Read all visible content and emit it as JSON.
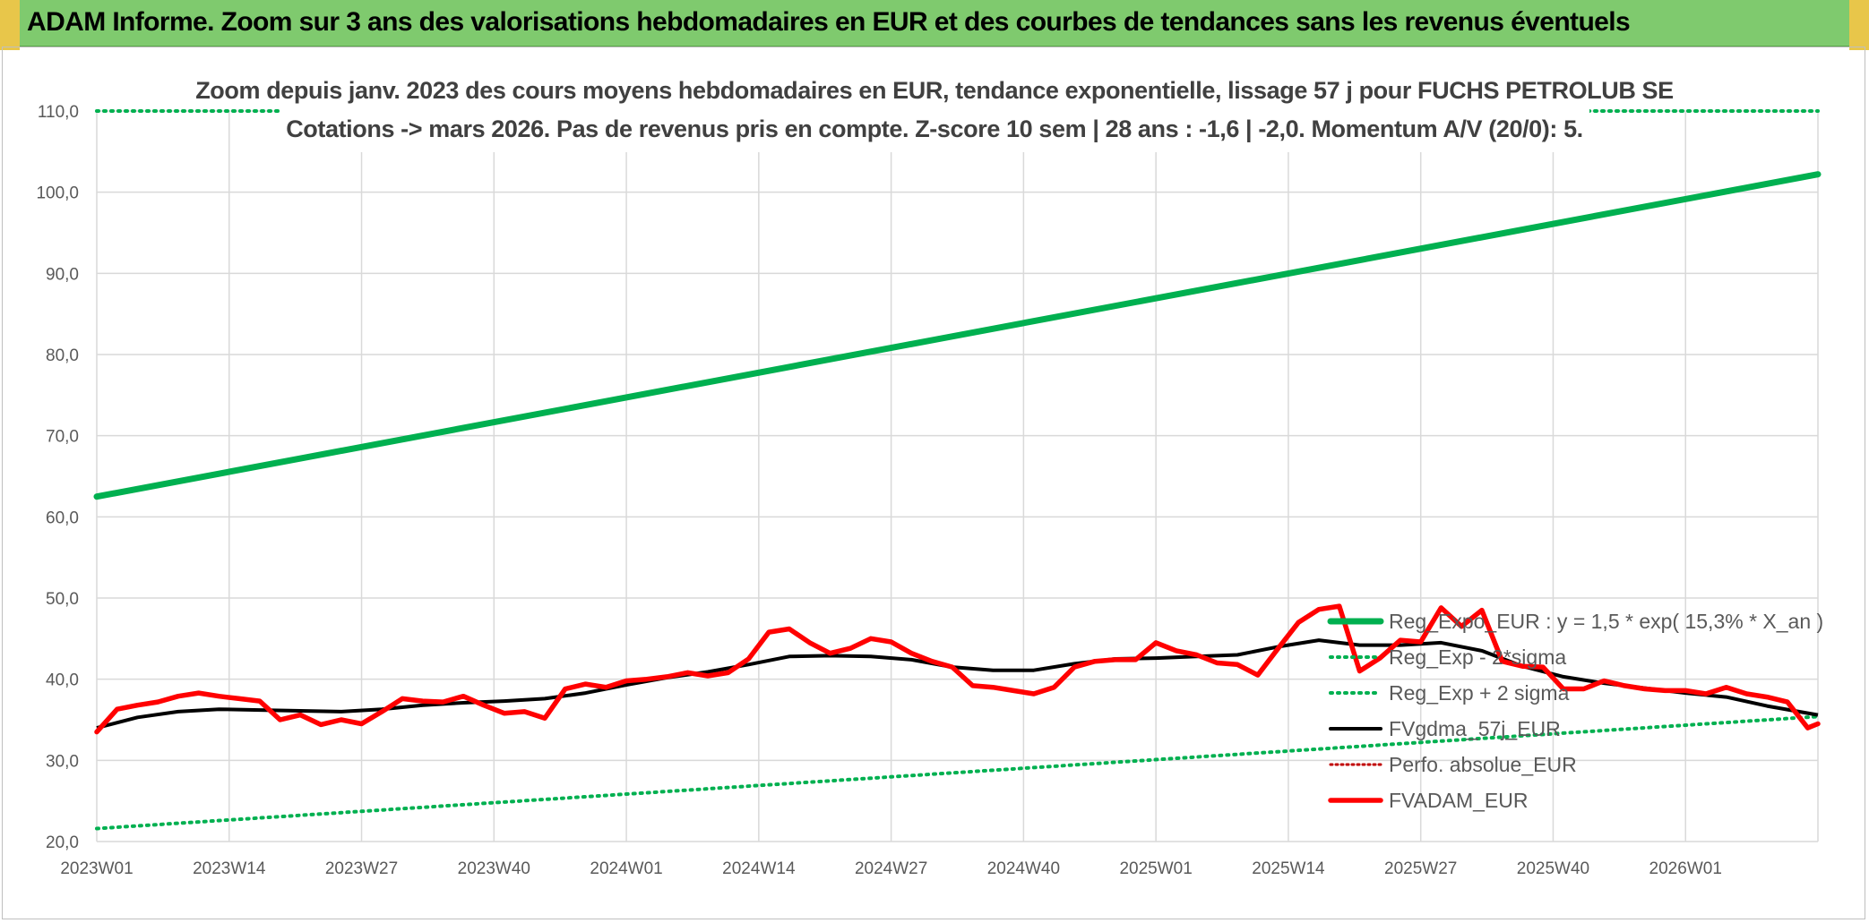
{
  "header": {
    "title": "ADAM Informe. Zoom sur 3 ans des valorisations hebdomadaires en EUR et des courbes de tendances sans les revenus éventuels"
  },
  "chart_data": {
    "type": "line",
    "title_line1": "Zoom depuis janv. 2023 des cours moyens hebdomadaires en EUR, tendance exponentielle, lissage 57 j pour FUCHS PETROLUB SE",
    "title_line2": "Cotations -> mars 2026. Pas de revenus pris en compte. Z-score 10 sem | 28 ans : -1,6 | -2,0. Momentum A/V (20/0): 5.",
    "ylim": [
      20,
      110
    ],
    "y_ticks": [
      "20,0",
      "30,0",
      "40,0",
      "50,0",
      "60,0",
      "70,0",
      "80,0",
      "90,0",
      "100,0",
      "110,0"
    ],
    "x_ticks": [
      "2023W01",
      "2023W14",
      "2023W27",
      "2023W40",
      "2024W01",
      "2024W14",
      "2024W27",
      "2024W40",
      "2025W01",
      "2025W14",
      "2025W27",
      "2025W40",
      "2026W01"
    ],
    "x_range_weeks": [
      0,
      169
    ],
    "colors": {
      "reg_expo": "#00b050",
      "sigma": "#00b050",
      "fvgdma": "#000000",
      "perfo": "#c00000",
      "fvadam": "#ff0000",
      "grid": "#d9d9d9"
    },
    "series": [
      {
        "name": "Reg_Expo_EUR : y = 1,5 * exp( 15,3% *  X_an )",
        "style": "solid-thick",
        "x": [
          0,
          169
        ],
        "values": [
          62.5,
          102.2
        ]
      },
      {
        "name": "Reg_Exp - 2*sigma",
        "style": "dotted",
        "x": [
          0,
          169
        ],
        "values": [
          21.6,
          35.4
        ]
      },
      {
        "name": "Reg_Exp + 2 sigma",
        "style": "dotted",
        "x": [
          0,
          169
        ],
        "values": [
          110.0,
          110.0
        ]
      },
      {
        "name": "FVgdma_57j_EUR",
        "style": "solid",
        "x": [
          0,
          4,
          8,
          12,
          16,
          20,
          24,
          28,
          32,
          36,
          40,
          44,
          48,
          52,
          56,
          60,
          64,
          68,
          72,
          76,
          80,
          84,
          88,
          92,
          96,
          100,
          104,
          108,
          112,
          116,
          120,
          124,
          128,
          132,
          136,
          140,
          144,
          148,
          152,
          156,
          160,
          164,
          169
        ],
        "values": [
          34.0,
          35.3,
          36.0,
          36.3,
          36.2,
          36.1,
          36.0,
          36.3,
          36.8,
          37.1,
          37.3,
          37.6,
          38.3,
          39.3,
          40.2,
          40.9,
          41.8,
          42.8,
          42.9,
          42.8,
          42.4,
          41.5,
          41.1,
          41.1,
          41.9,
          42.5,
          42.6,
          42.8,
          43.0,
          44.0,
          44.8,
          44.2,
          44.2,
          44.5,
          43.5,
          41.6,
          40.3,
          39.5,
          38.9,
          38.3,
          37.8,
          36.7,
          35.6
        ]
      },
      {
        "name": "Perfo. absolue_EUR",
        "style": "dotted-red",
        "x": [],
        "values": []
      },
      {
        "name": "FVADAM_EUR",
        "style": "solid-thick",
        "x": [
          0,
          2,
          4,
          6,
          8,
          10,
          12,
          14,
          16,
          18,
          20,
          22,
          24,
          26,
          28,
          30,
          32,
          34,
          36,
          38,
          40,
          42,
          44,
          46,
          48,
          50,
          52,
          54,
          56,
          58,
          60,
          62,
          64,
          66,
          68,
          70,
          72,
          74,
          76,
          78,
          80,
          82,
          84,
          86,
          88,
          90,
          92,
          94,
          96,
          98,
          100,
          102,
          104,
          106,
          108,
          110,
          112,
          114,
          116,
          118,
          120,
          122,
          124,
          126,
          128,
          130,
          132,
          134,
          136,
          138,
          140,
          142,
          144,
          146,
          148,
          150,
          152,
          154,
          156,
          158,
          160,
          162,
          164,
          166,
          168,
          169
        ],
        "values": [
          33.5,
          36.3,
          36.8,
          37.2,
          37.9,
          38.3,
          37.9,
          37.6,
          37.3,
          35.0,
          35.6,
          34.4,
          35.0,
          34.5,
          36.0,
          37.6,
          37.3,
          37.2,
          37.9,
          36.8,
          35.8,
          36.0,
          35.2,
          38.8,
          39.4,
          39.0,
          39.8,
          40.0,
          40.3,
          40.8,
          40.4,
          40.8,
          42.5,
          45.8,
          46.2,
          44.5,
          43.2,
          43.8,
          45.0,
          44.6,
          43.2,
          42.2,
          41.5,
          39.2,
          39.0,
          38.6,
          38.2,
          39.0,
          41.5,
          42.2,
          42.4,
          42.4,
          44.5,
          43.5,
          43.0,
          42.0,
          41.8,
          40.5,
          43.8,
          47.0,
          48.6,
          49.0,
          41.0,
          42.6,
          44.8,
          44.6,
          48.8,
          46.5,
          48.5,
          42.2,
          41.6,
          41.5,
          38.8,
          38.8,
          39.8,
          39.2,
          38.8,
          38.6,
          38.6,
          38.2,
          39.0,
          38.2,
          37.8,
          37.2,
          34.0,
          34.5
        ]
      }
    ]
  }
}
